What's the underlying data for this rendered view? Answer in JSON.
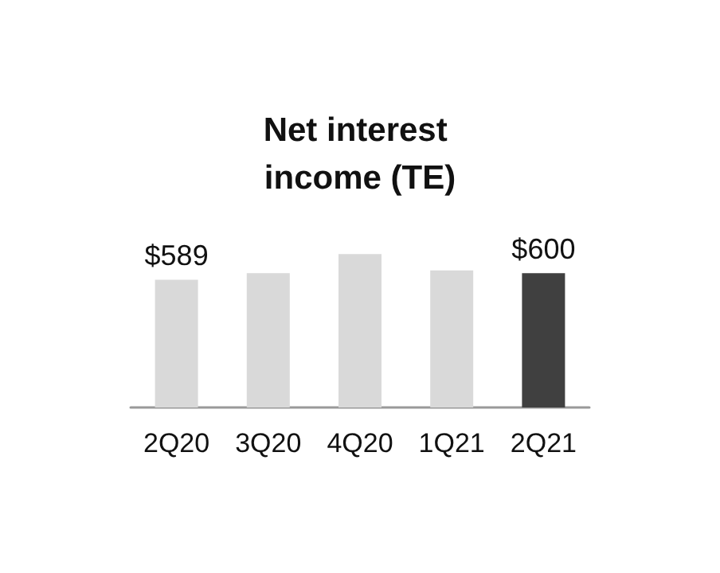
{
  "chart_data": {
    "type": "bar",
    "title": "Net interest income (TE)",
    "categories": [
      "2Q20",
      "3Q20",
      "4Q20",
      "1Q21",
      "2Q21"
    ],
    "values": [
      589,
      600,
      633,
      605,
      600
    ],
    "colors": [
      "#d9d9d9",
      "#d9d9d9",
      "#d9d9d9",
      "#d9d9d9",
      "#404040"
    ],
    "value_labels": [
      "$589",
      null,
      null,
      null,
      "$600"
    ],
    "ylim": [
      370,
      640
    ],
    "tick_labels": "x"
  }
}
